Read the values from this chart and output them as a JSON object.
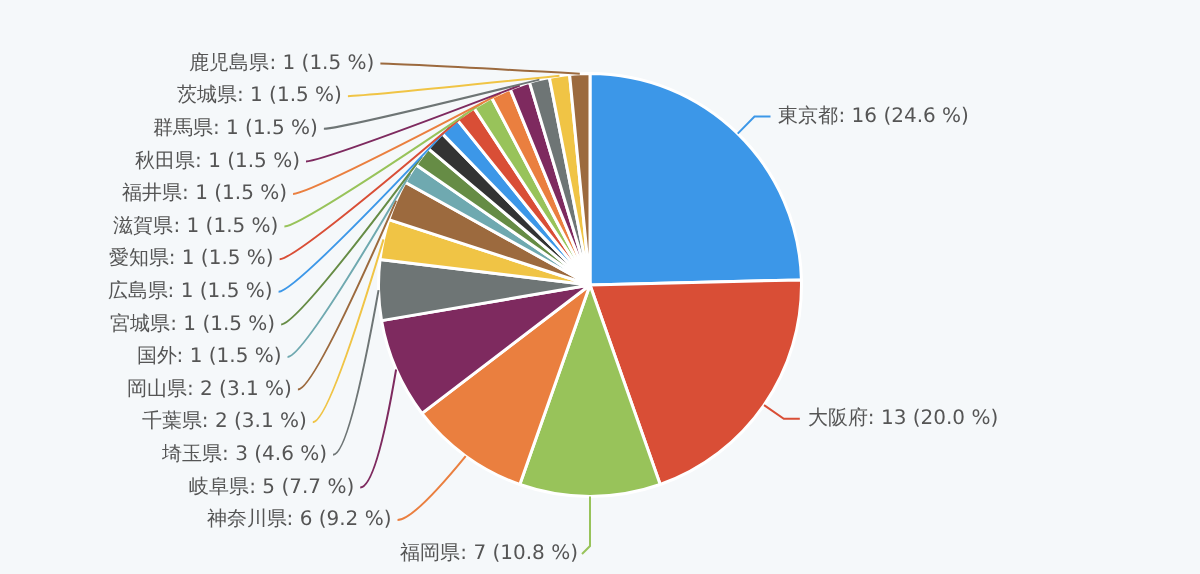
{
  "chart_data": {
    "type": "pie",
    "categories": [
      "東京都",
      "大阪府",
      "福岡県",
      "神奈川県",
      "岐阜県",
      "埼玉県",
      "千葉県",
      "岡山県",
      "国外",
      "宮城県",
      null,
      "広島県",
      "愛知県",
      "滋賀県",
      "福井県",
      "秋田県",
      "群馬県",
      "茨城県",
      "鹿児島県"
    ],
    "values": [
      16,
      13,
      7,
      6,
      5,
      3,
      2,
      2,
      1,
      1,
      1,
      1,
      1,
      1,
      1,
      1,
      1,
      1,
      1
    ],
    "colors": [
      "#3c97e8",
      "#d94e36",
      "#98c35a",
      "#ea7f3f",
      "#7e2a5f",
      "#6e7575",
      "#f0c445",
      "#9c6a3e",
      "#6fa9b0",
      "#668c45",
      "#333333",
      "#3c97e8",
      "#d94e36",
      "#98c35a",
      "#ea7f3f",
      "#7e2a5f",
      "#6e7575",
      "#f0c445",
      "#9c6a3e"
    ],
    "value_labels": [
      "16 (24.6 %)",
      "13 (20.0 %)",
      "7 (10.8 %)",
      "6 (9.2 %)",
      "5 (7.7 %)",
      "3 (4.6 %)",
      "2 (3.1 %)",
      "2 (3.1 %)",
      "1 (1.5 %)",
      "1 (1.5 %)",
      null,
      "1 (1.5 %)",
      "1 (1.5 %)",
      "1 (1.5 %)",
      "1 (1.5 %)",
      "1 (1.5 %)",
      "1 (1.5 %)",
      "1 (1.5 %)",
      "1 (1.5 %)"
    ],
    "legend": false
  }
}
